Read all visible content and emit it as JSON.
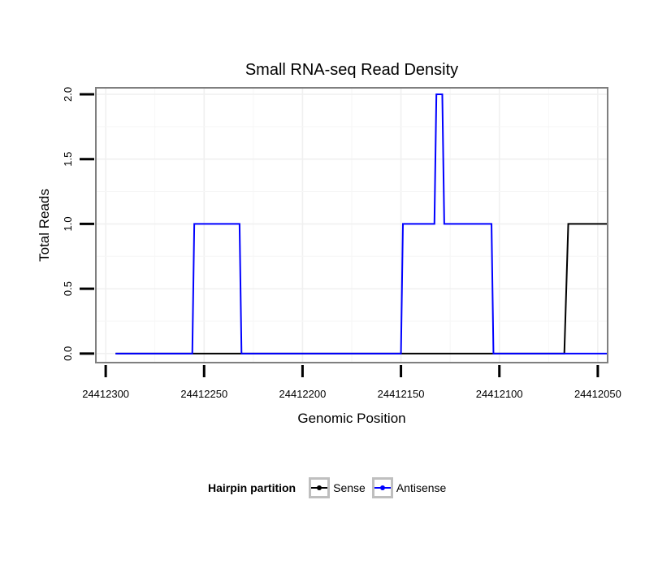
{
  "chart_data": {
    "type": "line",
    "title": "Small RNA-seq Read Density",
    "xlabel": "Genomic Position",
    "ylabel": "Total Reads",
    "x_reversed": true,
    "xlim": [
      24412305,
      24412045
    ],
    "ylim": [
      -0.07,
      2.05
    ],
    "xticks": [
      24412300,
      24412250,
      24412200,
      24412150,
      24412100,
      24412050
    ],
    "xtick_labels": [
      "24412300",
      "24412250",
      "24412200",
      "24412150",
      "24412100",
      "24412050"
    ],
    "yticks": [
      0.0,
      0.5,
      1.0,
      1.5,
      2.0
    ],
    "ytick_labels": [
      "0.0",
      "0.5",
      "1.0",
      "1.5",
      "2.0"
    ],
    "grid": true,
    "legend_position": "bottom",
    "legend_title": "Hairpin partition",
    "series": [
      {
        "name": "Sense",
        "color": "#000000",
        "x": [
          24412295,
          24412067,
          24412065,
          24412045
        ],
        "y": [
          0,
          0,
          1,
          1
        ]
      },
      {
        "name": "Antisense",
        "color": "#0000ff",
        "x": [
          24412295,
          24412256,
          24412255,
          24412232,
          24412231,
          24412150,
          24412149,
          24412133,
          24412132,
          24412129,
          24412128,
          24412104,
          24412103,
          24412045
        ],
        "y": [
          0,
          0,
          1,
          1,
          0,
          0,
          1,
          1,
          2,
          2,
          1,
          1,
          0,
          0
        ]
      }
    ]
  }
}
